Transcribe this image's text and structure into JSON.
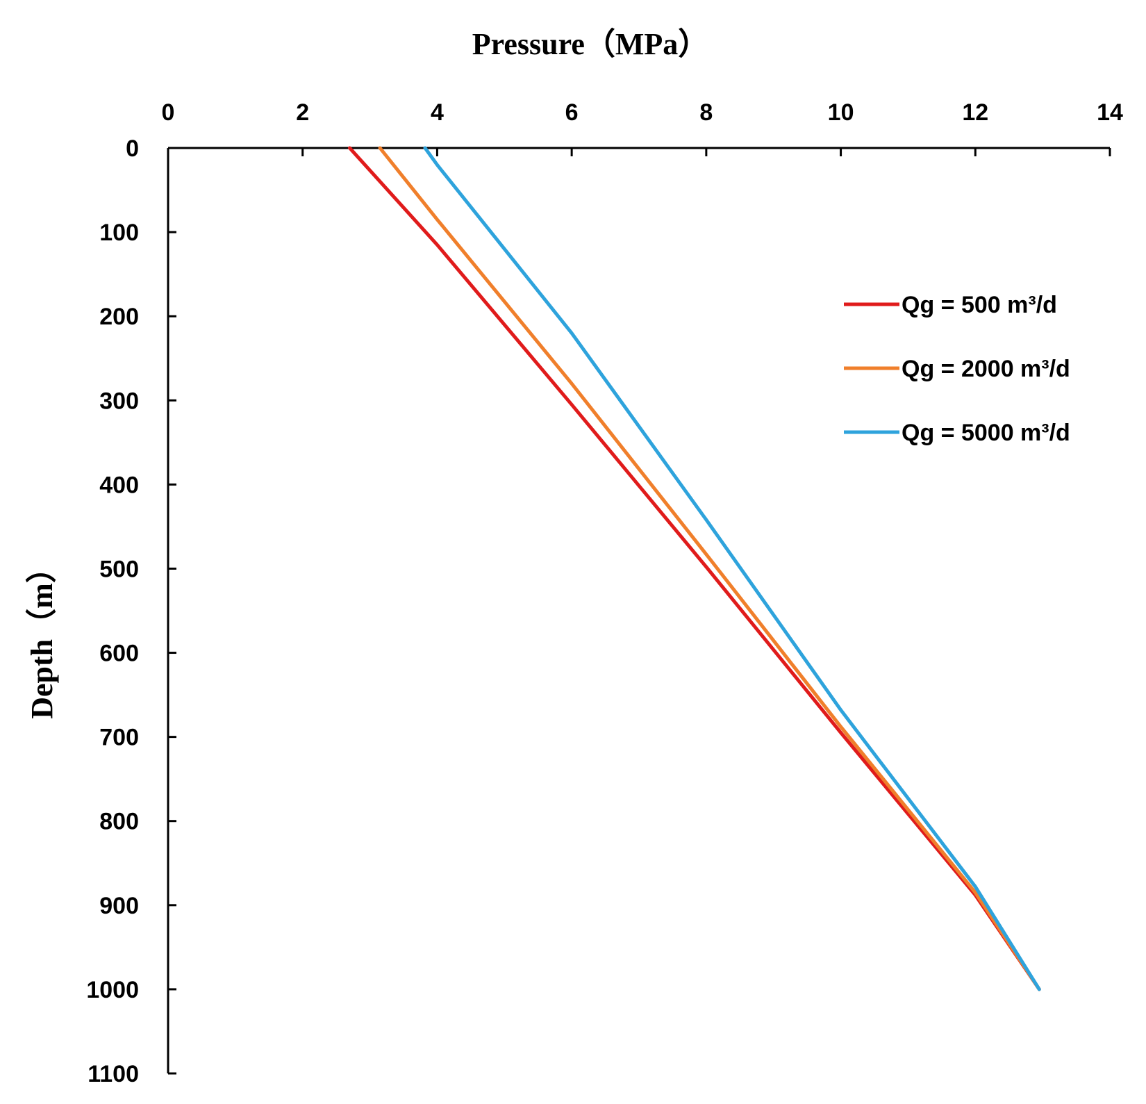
{
  "chart_data": {
    "type": "line",
    "title": "",
    "xlabel": "Pressure（MPa）",
    "ylabel": "Depth（m）",
    "xlim": [
      0,
      14
    ],
    "ylim": [
      0,
      1100
    ],
    "y_inverted": true,
    "x_axis_position": "top",
    "xticks": [
      0,
      2,
      4,
      6,
      8,
      10,
      12,
      14
    ],
    "yticks": [
      0,
      100,
      200,
      300,
      400,
      500,
      600,
      700,
      800,
      900,
      1000,
      1100
    ],
    "grid": false,
    "legend_position": "top-right",
    "series": [
      {
        "name": "Qg = 500 m³/d",
        "color": "#e01b1b",
        "points": [
          [
            2.7,
            0
          ],
          [
            4.0,
            115
          ],
          [
            6.0,
            305
          ],
          [
            8.0,
            498
          ],
          [
            10.0,
            695
          ],
          [
            12.0,
            888
          ],
          [
            12.95,
            1000
          ]
        ]
      },
      {
        "name": "Qg = 2000 m³/d",
        "color": "#f07f2b",
        "points": [
          [
            3.15,
            0
          ],
          [
            4.0,
            85
          ],
          [
            6.0,
            280
          ],
          [
            8.0,
            483
          ],
          [
            10.0,
            688
          ],
          [
            12.0,
            885
          ],
          [
            12.95,
            1000
          ]
        ]
      },
      {
        "name": "Qg = 5000 m³/d",
        "color": "#2ea3dc",
        "points": [
          [
            3.82,
            0
          ],
          [
            4.0,
            20
          ],
          [
            6.0,
            220
          ],
          [
            8.0,
            442
          ],
          [
            10.0,
            668
          ],
          [
            12.0,
            878
          ],
          [
            12.95,
            1000
          ]
        ]
      }
    ]
  }
}
